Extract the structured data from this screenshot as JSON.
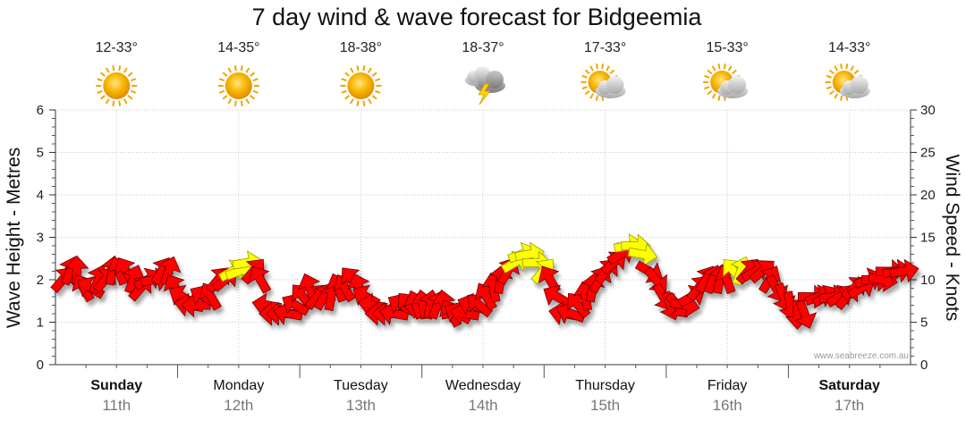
{
  "chart_data": {
    "type": "line",
    "title": "7 day wind & wave forecast for Bidgeemia",
    "ylabel_left": "Wave Height - Metres",
    "ylabel_right": "Wind Speed - Knots",
    "ylim_left": [
      0,
      6
    ],
    "ylim_right": [
      0,
      30
    ],
    "yticks_left": [
      "0",
      "1",
      "2",
      "3",
      "4",
      "5",
      "6"
    ],
    "yticks_right": [
      "0",
      "5",
      "10",
      "15",
      "20",
      "25",
      "30"
    ],
    "credit": "www.seabreeze.com.au",
    "grid": true,
    "days": [
      {
        "name": "Sunday",
        "date": "11th",
        "temp": "12-33°",
        "icon": "sun-icon",
        "bold": true
      },
      {
        "name": "Monday",
        "date": "12th",
        "temp": "14-35°",
        "icon": "sun-icon",
        "bold": false
      },
      {
        "name": "Tuesday",
        "date": "13th",
        "temp": "18-38°",
        "icon": "sun-icon",
        "bold": false
      },
      {
        "name": "Wednesday",
        "date": "14th",
        "temp": "18-37°",
        "icon": "storm-icon",
        "bold": false
      },
      {
        "name": "Thursday",
        "date": "15th",
        "temp": "17-33°",
        "icon": "partly-cloudy-icon",
        "bold": false
      },
      {
        "name": "Friday",
        "date": "16th",
        "temp": "15-33°",
        "icon": "partly-cloudy-icon",
        "bold": false
      },
      {
        "name": "Saturday",
        "date": "17th",
        "temp": "14-33°",
        "icon": "partly-cloudy-icon",
        "bold": true
      }
    ],
    "series": [
      {
        "wind_knots": [
          10,
          11,
          11,
          9,
          9,
          10,
          10,
          11,
          11,
          11,
          10,
          9,
          10,
          10,
          11,
          11,
          9,
          8,
          7,
          7,
          8,
          8,
          10,
          10,
          11,
          11,
          12,
          11,
          10,
          7,
          6,
          6,
          6,
          7,
          8,
          9,
          8,
          8,
          8,
          9,
          9,
          10,
          9,
          8,
          7,
          6,
          6,
          6,
          7,
          7,
          7,
          7,
          7,
          7,
          7,
          6,
          6,
          6,
          7,
          7,
          8,
          9,
          10,
          11,
          12,
          13,
          13,
          12,
          11,
          10,
          8,
          6,
          6,
          7,
          8,
          9,
          10,
          11,
          12,
          13,
          14,
          14,
          13,
          11,
          10,
          8,
          7,
          7,
          7,
          8,
          9,
          10,
          10,
          10,
          10,
          11,
          11,
          11,
          11,
          11,
          10,
          9,
          8,
          7,
          6,
          6,
          8,
          8,
          8,
          8,
          8,
          8,
          9,
          9,
          10,
          10,
          10,
          11,
          11,
          11
        ],
        "wind_colors": [
          "r",
          "r",
          "r",
          "r",
          "r",
          "r",
          "r",
          "r",
          "r",
          "r",
          "r",
          "r",
          "r",
          "r",
          "r",
          "r",
          "r",
          "r",
          "r",
          "r",
          "r",
          "r",
          "r",
          "r",
          "y",
          "y",
          "y",
          "r",
          "r",
          "r",
          "r",
          "r",
          "r",
          "r",
          "r",
          "r",
          "r",
          "r",
          "r",
          "r",
          "r",
          "r",
          "r",
          "r",
          "r",
          "r",
          "r",
          "r",
          "r",
          "r",
          "r",
          "r",
          "r",
          "r",
          "r",
          "r",
          "r",
          "r",
          "r",
          "r",
          "r",
          "r",
          "r",
          "r",
          "y",
          "y",
          "y",
          "y",
          "y",
          "r",
          "r",
          "r",
          "r",
          "r",
          "r",
          "r",
          "r",
          "r",
          "r",
          "r",
          "y",
          "y",
          "y",
          "r",
          "r",
          "r",
          "r",
          "r",
          "r",
          "r",
          "r",
          "r",
          "r",
          "r",
          "r",
          "y",
          "y",
          "r",
          "r",
          "r",
          "r",
          "r",
          "r",
          "r",
          "r",
          "r",
          "r",
          "r",
          "r",
          "r",
          "r",
          "r",
          "r",
          "r",
          "r",
          "r",
          "r",
          "r",
          "r",
          "r"
        ],
        "wind_dir_deg": [
          40,
          20,
          0,
          330,
          300,
          20,
          40,
          10,
          340,
          330,
          20,
          40,
          60,
          80,
          30,
          20,
          330,
          300,
          280,
          270,
          300,
          330,
          40,
          50,
          60,
          70,
          80,
          40,
          330,
          280,
          270,
          270,
          280,
          300,
          320,
          340,
          40,
          30,
          10,
          340,
          330,
          320,
          340,
          300,
          280,
          270,
          270,
          280,
          300,
          320,
          340,
          350,
          10,
          20,
          350,
          330,
          300,
          280,
          290,
          310,
          330,
          350,
          10,
          30,
          60,
          70,
          80,
          90,
          40,
          330,
          300,
          280,
          290,
          320,
          350,
          10,
          30,
          40,
          50,
          60,
          80,
          90,
          100,
          120,
          140,
          150,
          160,
          140,
          100,
          60,
          40,
          30,
          20,
          10,
          340,
          320,
          20,
          40,
          60,
          50,
          30,
          150,
          160,
          170,
          180,
          160,
          90,
          70,
          60,
          80,
          60,
          40,
          50,
          60,
          70,
          90,
          100,
          90,
          80,
          80
        ],
        "wave_m": []
      }
    ]
  }
}
